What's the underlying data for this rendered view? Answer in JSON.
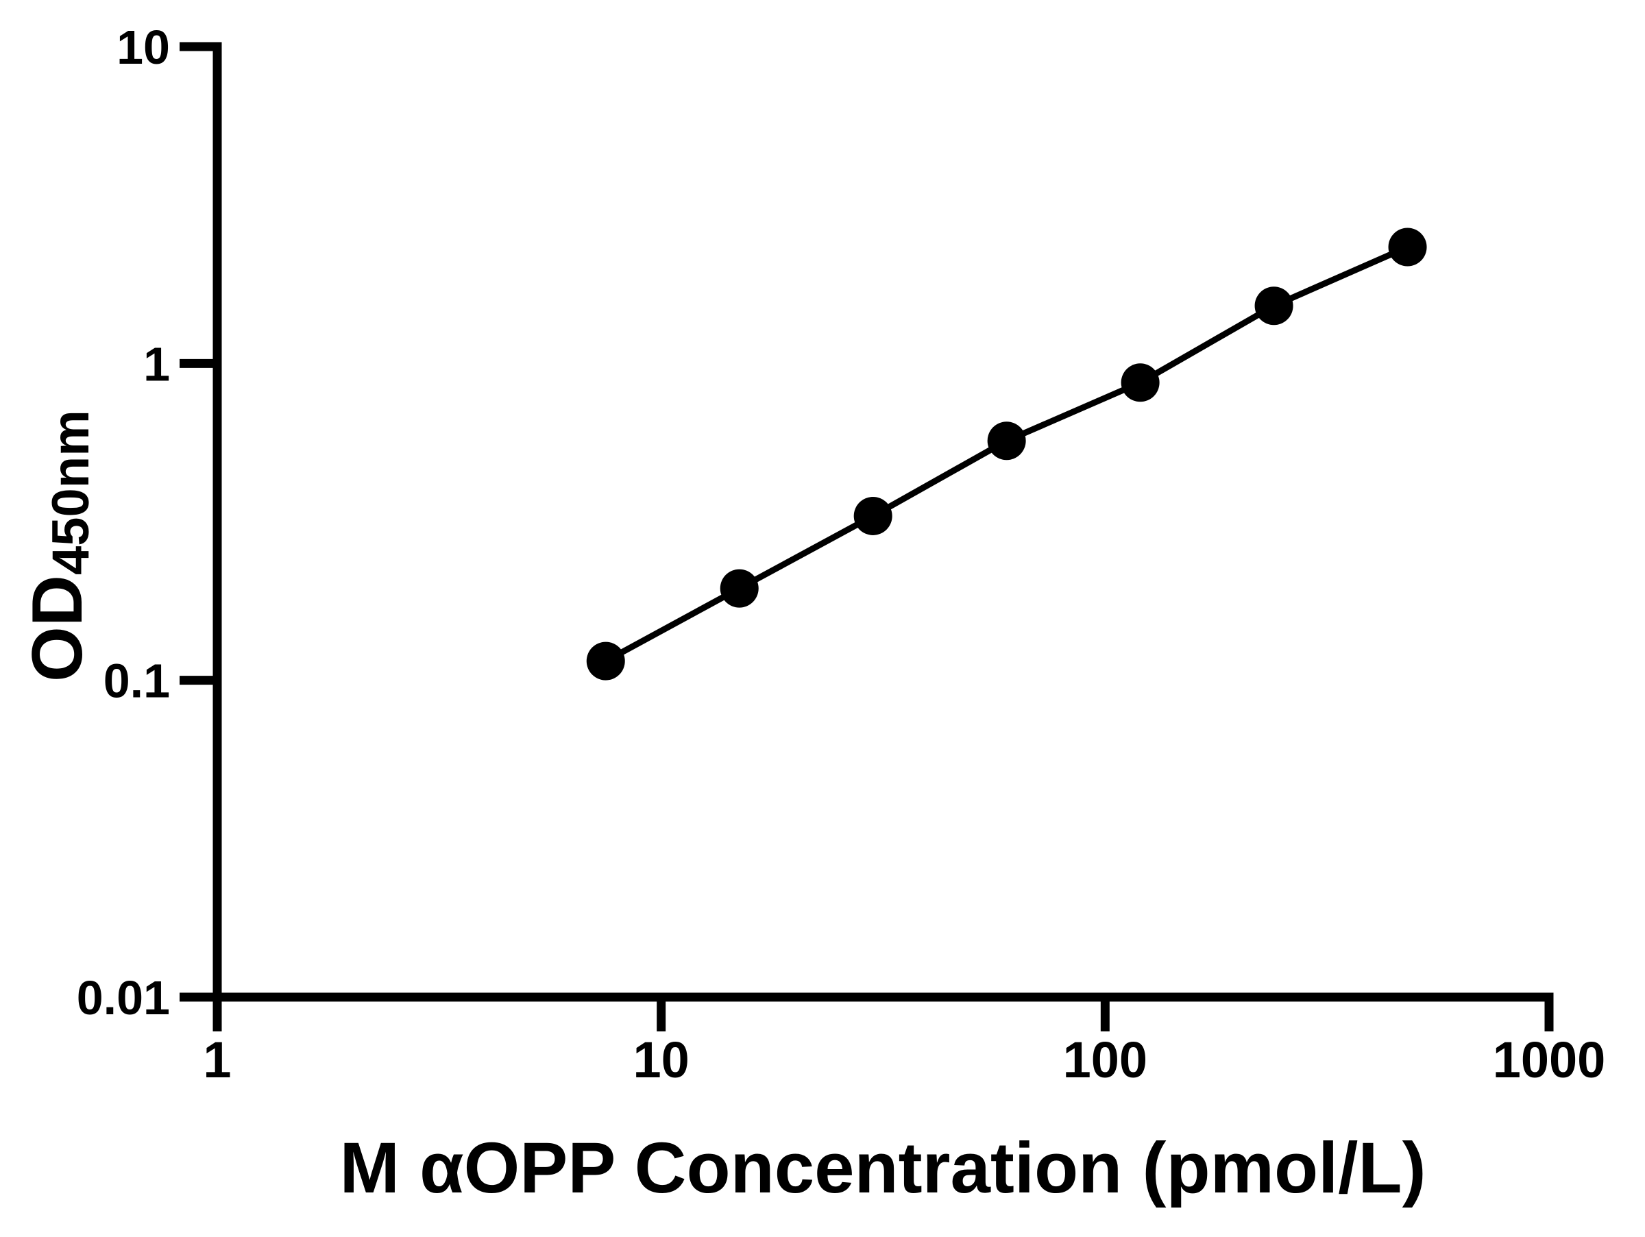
{
  "chart_data": {
    "type": "line",
    "title": "",
    "xlabel": "M αOPP Concentration (pmol/L)",
    "ylabel_main": "OD",
    "ylabel_sub": "450nm",
    "x": [
      7.5,
      15,
      30,
      60,
      120,
      240,
      480
    ],
    "y": [
      0.115,
      0.195,
      0.33,
      0.57,
      0.87,
      1.52,
      2.33
    ],
    "x_scale": "log",
    "y_scale": "log",
    "xlim": [
      1,
      1000
    ],
    "ylim": [
      0.01,
      10
    ],
    "x_ticks": [
      1,
      10,
      100,
      1000
    ],
    "x_tick_labels": [
      "1",
      "10",
      "100",
      "1000"
    ],
    "y_ticks": [
      10,
      1,
      0.1,
      0.01
    ],
    "y_tick_labels": [
      "10",
      "1",
      "0.1",
      "0.01"
    ],
    "grid": false,
    "legend": null,
    "marker": "circle",
    "marker_color": "#000000",
    "line_color": "#000000",
    "axis_color": "#000000",
    "background_color": "#ffffff"
  }
}
